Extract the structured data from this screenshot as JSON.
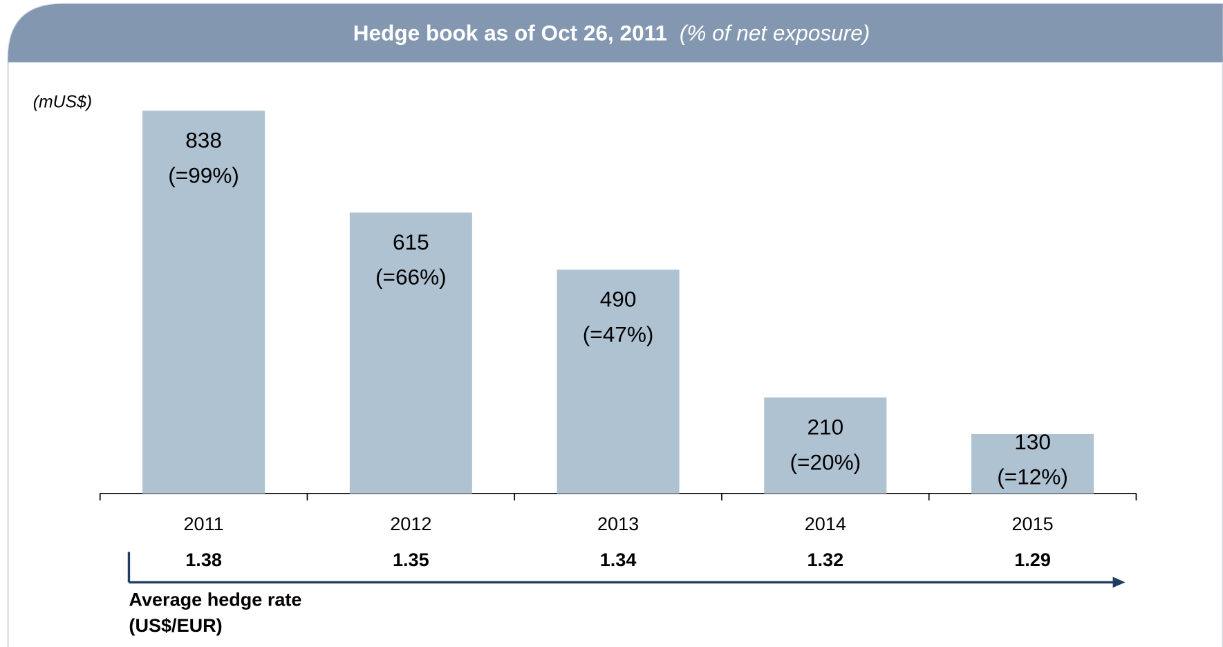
{
  "chart_data": {
    "type": "bar",
    "title": "Hedge book as of Oct 26, 2011",
    "subtitle": "(% of net exposure)",
    "unit_label": "(mUS$)",
    "categories": [
      "2011",
      "2012",
      "2013",
      "2014",
      "2015"
    ],
    "values": [
      838,
      615,
      490,
      210,
      130
    ],
    "percent_labels": [
      "(=99%)",
      "(=66%)",
      "(=47%)",
      "(=20%)",
      "(=12%)"
    ],
    "color": "#afc2d1",
    "rate_values": [
      1.38,
      1.35,
      1.34,
      1.32,
      1.29
    ],
    "rate_label": [
      "Average hedge rate",
      "(US$/EUR)"
    ]
  }
}
